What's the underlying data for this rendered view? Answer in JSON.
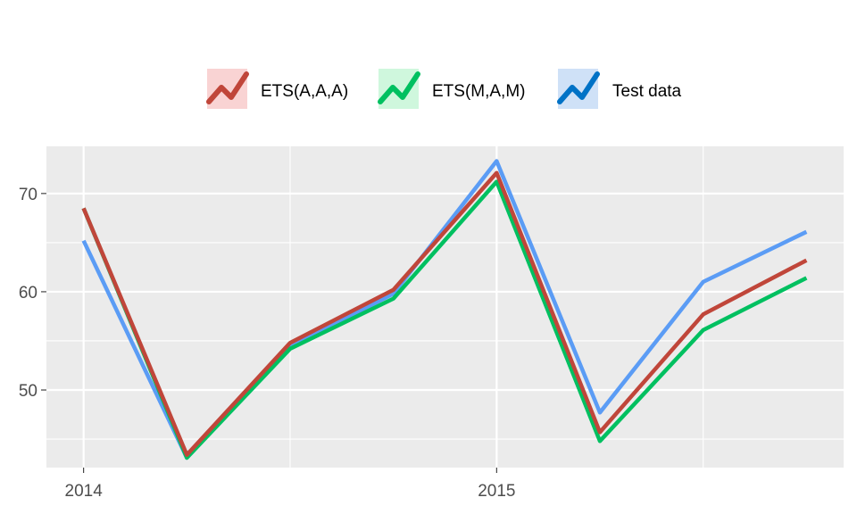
{
  "chart_data": {
    "type": "line",
    "title": "",
    "xlabel": "",
    "ylabel": "",
    "x": [
      2014.0,
      2014.25,
      2014.5,
      2014.75,
      2015.0,
      2015.25,
      2015.5,
      2015.75
    ],
    "x_ticks": [
      2014,
      2015
    ],
    "x_tick_labels": [
      "2014",
      "2015"
    ],
    "xlim": [
      2013.91,
      2015.84
    ],
    "y_ticks": [
      50,
      60,
      70
    ],
    "y_tick_labels": [
      "50",
      "60",
      "70"
    ],
    "ylim": [
      42.1,
      74.8
    ],
    "grid": true,
    "legend_position": "top",
    "series": [
      {
        "name": "ETS(A,A,A)",
        "color": "#c0463a",
        "fill": "#f9d3d3",
        "values": [
          68.5,
          43.4,
          54.8,
          60.2,
          72.1,
          45.7,
          57.7,
          63.2
        ]
      },
      {
        "name": "ETS(M,A,M)",
        "color": "#00c060",
        "fill": "#cff7dd",
        "values": [
          68.5,
          43.1,
          54.2,
          59.3,
          71.2,
          44.8,
          56.1,
          61.4
        ]
      },
      {
        "name": "Test data",
        "color": "#5b9cf5",
        "legend_color": "#0072c6",
        "fill": "#cfe1f7",
        "values": [
          65.2,
          43.1,
          54.4,
          59.8,
          73.3,
          47.7,
          61.0,
          66.1
        ]
      }
    ]
  }
}
